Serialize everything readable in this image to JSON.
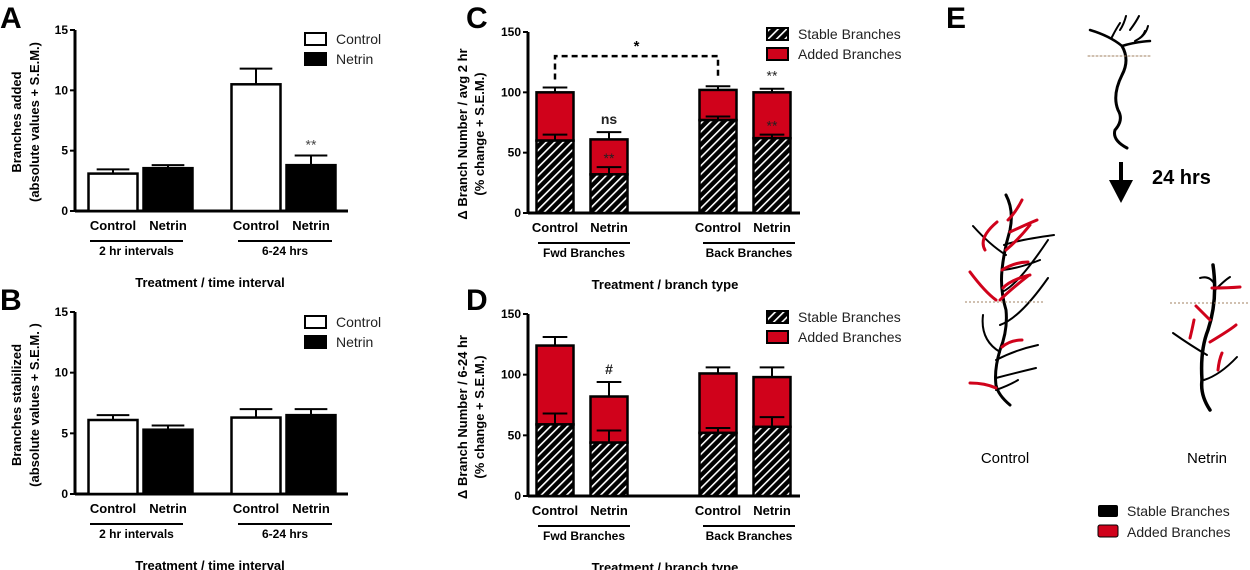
{
  "colors": {
    "added": "#d0021b",
    "stable": "#000000",
    "control": "#ffffff",
    "netrin": "#000000",
    "guide_line": "#a08060"
  },
  "chart_data": [
    {
      "panel": "A",
      "type": "bar",
      "ylabel": [
        "Branches added",
        "(absolute values + S.E.M.)"
      ],
      "xlabel": "Treatment / time interval",
      "ylim": [
        0,
        15
      ],
      "yticks": [
        0,
        5,
        10,
        15
      ],
      "categories": [
        "Control",
        "Netrin",
        "Control",
        "Netrin"
      ],
      "groups": [
        "2 hr intervals",
        "6-24 hrs"
      ],
      "legend": [
        {
          "name": "Control",
          "fill": "control"
        },
        {
          "name": "Netrin",
          "fill": "netrin"
        }
      ],
      "legend_position": "top-right",
      "bars": [
        {
          "value": 3.1,
          "sem": 0.35,
          "fill": "control"
        },
        {
          "value": 3.55,
          "sem": 0.25,
          "fill": "netrin"
        },
        {
          "value": 10.5,
          "sem": 1.3,
          "fill": "control"
        },
        {
          "value": 3.8,
          "sem": 0.8,
          "fill": "netrin",
          "annotation": "**"
        }
      ]
    },
    {
      "panel": "B",
      "type": "bar",
      "ylabel": [
        "Branches stabilized",
        "(absolute values + S.E.M. )"
      ],
      "xlabel": "Treatment / time interval",
      "ylim": [
        0,
        15
      ],
      "yticks": [
        0,
        5,
        10,
        15
      ],
      "categories": [
        "Control",
        "Netrin",
        "Control",
        "Netrin"
      ],
      "groups": [
        "2 hr intervals",
        "6-24 hrs"
      ],
      "legend": [
        {
          "name": "Control",
          "fill": "control"
        },
        {
          "name": "Netrin",
          "fill": "netrin"
        }
      ],
      "legend_position": "top-right",
      "bars": [
        {
          "value": 6.1,
          "sem": 0.4,
          "fill": "control"
        },
        {
          "value": 5.3,
          "sem": 0.35,
          "fill": "netrin"
        },
        {
          "value": 6.3,
          "sem": 0.7,
          "fill": "control"
        },
        {
          "value": 6.5,
          "sem": 0.5,
          "fill": "netrin"
        }
      ]
    },
    {
      "panel": "C",
      "type": "stacked-bar",
      "ylabel": [
        "Δ Branch Number / avg 2 hr",
        "(% change + S.E.M.)"
      ],
      "xlabel": "Treatment / branch type",
      "ylim": [
        0,
        150
      ],
      "yticks": [
        0,
        50,
        100,
        150
      ],
      "categories": [
        "Control",
        "Netrin",
        "Control",
        "Netrin"
      ],
      "groups": [
        "Fwd Branches",
        "Back Branches"
      ],
      "legend": [
        {
          "name": "Stable Branches",
          "fill": "stable"
        },
        {
          "name": "Added Branches",
          "fill": "added"
        }
      ],
      "legend_position": "top-right",
      "bars": [
        {
          "stable": 60,
          "stable_sem": 5,
          "total": 100,
          "total_sem": 4
        },
        {
          "stable": 32,
          "stable_sem": 6,
          "total": 61,
          "total_sem": 6,
          "annotation_top": "ns",
          "annotation_added": "**"
        },
        {
          "stable": 77,
          "stable_sem": 3,
          "total": 102,
          "total_sem": 3
        },
        {
          "stable": 62,
          "stable_sem": 3,
          "total": 100,
          "total_sem": 3,
          "annotation_top": "**",
          "annotation_added": "**"
        }
      ],
      "bracket": {
        "from": 0,
        "to": 2,
        "label": "*",
        "level": 130
      }
    },
    {
      "panel": "D",
      "type": "stacked-bar",
      "ylabel": [
        "Δ Branch Number / 6-24 hr",
        "(% change + S.E.M.)"
      ],
      "xlabel": "Treatment / branch type",
      "ylim": [
        0,
        150
      ],
      "yticks": [
        0,
        50,
        100,
        150
      ],
      "categories": [
        "Control",
        "Netrin",
        "Control",
        "Netrin"
      ],
      "groups": [
        "Fwd Branches",
        "Back Branches"
      ],
      "legend": [
        {
          "name": "Stable Branches",
          "fill": "stable"
        },
        {
          "name": "Added Branches",
          "fill": "added"
        }
      ],
      "legend_position": "top-right",
      "bars": [
        {
          "stable": 59,
          "stable_sem": 9,
          "total": 124,
          "total_sem": 7
        },
        {
          "stable": 44,
          "stable_sem": 10,
          "total": 82,
          "total_sem": 12,
          "annotation_top": "#"
        },
        {
          "stable": 52,
          "stable_sem": 4,
          "total": 101,
          "total_sem": 5
        },
        {
          "stable": 57,
          "stable_sem": 8,
          "total": 98,
          "total_sem": 8
        }
      ]
    }
  ],
  "schematic": {
    "panel": "E",
    "time_label": "24 hrs",
    "labels": [
      "Control",
      "Netrin"
    ],
    "legend": [
      {
        "name": "Stable Branches",
        "fill": "stable"
      },
      {
        "name": "Added Branches",
        "fill": "added"
      }
    ]
  }
}
